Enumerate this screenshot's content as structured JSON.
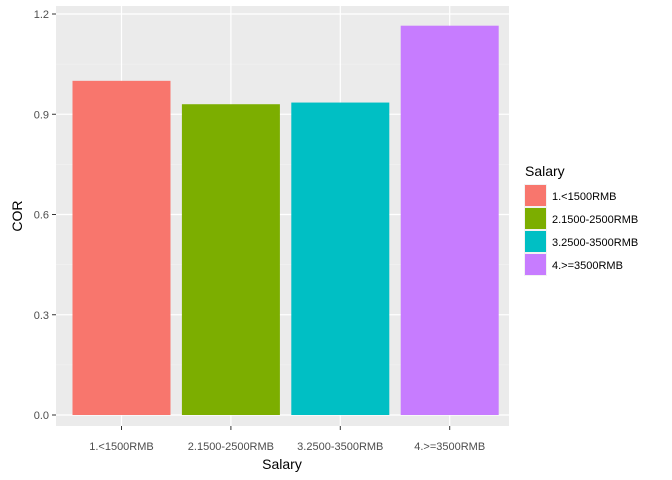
{
  "chart_data": {
    "type": "bar",
    "categories": [
      "1.<1500RMB",
      "2.1500-2500RMB",
      "3.2500-3500RMB",
      "4.>=3500RMB"
    ],
    "values": [
      1.0,
      0.93,
      0.935,
      1.165
    ],
    "colors": [
      "#F8766D",
      "#7CAE00",
      "#00BFC4",
      "#C77CFF"
    ],
    "xlabel": "Salary",
    "ylabel": "COR",
    "ylim": [
      0,
      1.2
    ],
    "yticks": [
      0.0,
      0.3,
      0.6,
      0.9,
      1.2
    ],
    "ytick_labels": [
      "0.0",
      "0.3",
      "0.6",
      "0.9",
      "1.2"
    ],
    "grid": true,
    "panel_background": "#EBEBEB",
    "legend": {
      "title": "Salary",
      "position": "right",
      "entries": [
        "1.<1500RMB",
        "2.1500-2500RMB",
        "3.2500-3500RMB",
        "4.>=3500RMB"
      ]
    }
  }
}
